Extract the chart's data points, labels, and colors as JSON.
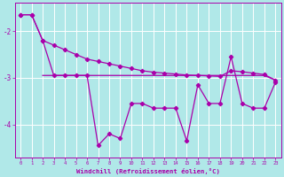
{
  "xlabel": "Windchill (Refroidissement éolien,°C)",
  "background_color": "#b0e8e8",
  "grid_color": "#ffffff",
  "line_color": "#aa00aa",
  "x_range": [
    -0.5,
    23.5
  ],
  "y_range": [
    -4.7,
    -1.4
  ],
  "y_ticks": [
    -4,
    -3,
    -2
  ],
  "x_ticks": [
    0,
    1,
    2,
    3,
    4,
    5,
    6,
    7,
    8,
    9,
    10,
    11,
    12,
    13,
    14,
    15,
    16,
    17,
    18,
    19,
    20,
    21,
    22,
    23
  ],
  "smooth_x": [
    0,
    1,
    2,
    3,
    4,
    5,
    6,
    7,
    8,
    9,
    10,
    11,
    12,
    13,
    14,
    15,
    16,
    17,
    18,
    19,
    20,
    21,
    22,
    23
  ],
  "smooth_y": [
    -1.65,
    -1.65,
    -2.2,
    -2.3,
    -2.4,
    -2.5,
    -2.6,
    -2.65,
    -2.7,
    -2.75,
    -2.8,
    -2.85,
    -2.88,
    -2.9,
    -2.92,
    -2.94,
    -2.95,
    -2.96,
    -2.97,
    -2.85,
    -2.87,
    -2.9,
    -2.93,
    -3.05
  ],
  "jagged_x": [
    0,
    1,
    2,
    3,
    4,
    5,
    6,
    7,
    8,
    9,
    10,
    11,
    12,
    13,
    14,
    15,
    16,
    17,
    18,
    19,
    20,
    21,
    22,
    23
  ],
  "jagged_y": [
    -1.65,
    -1.65,
    -2.2,
    -2.95,
    -2.95,
    -2.95,
    -2.95,
    -4.45,
    -4.2,
    -4.3,
    -3.55,
    -3.55,
    -3.65,
    -3.65,
    -3.65,
    -4.35,
    -3.15,
    -3.55,
    -3.55,
    -2.55,
    -3.55,
    -3.65,
    -3.65,
    -3.1
  ],
  "flat_x": [
    2,
    3,
    4,
    5,
    6,
    7,
    8,
    9,
    10,
    11,
    12,
    13,
    14,
    15,
    16,
    17,
    18,
    19,
    20,
    21,
    22,
    23
  ],
  "flat_y": [
    -2.95,
    -2.95,
    -2.95,
    -2.95,
    -2.95,
    -2.95,
    -2.95,
    -2.95,
    -2.95,
    -2.95,
    -2.95,
    -2.95,
    -2.95,
    -2.95,
    -2.95,
    -2.95,
    -2.95,
    -2.95,
    -2.95,
    -2.95,
    -2.95,
    -3.05
  ]
}
